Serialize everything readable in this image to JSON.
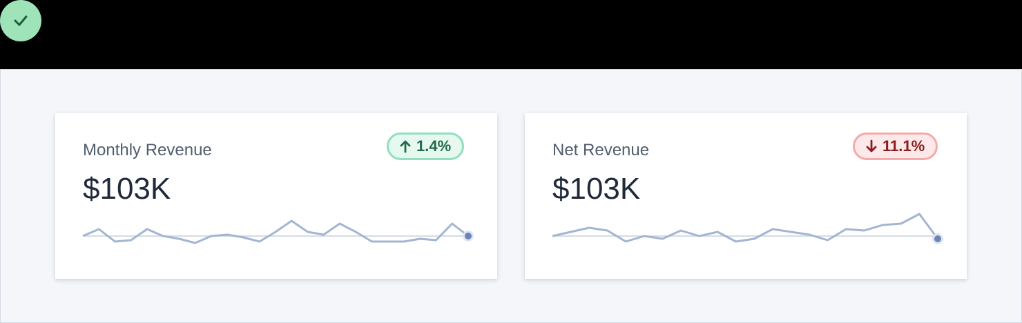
{
  "status": {
    "icon": "check-icon",
    "color": "#9fe3b8"
  },
  "colors": {
    "accent": "#a3b5d1",
    "dot": "#6b85b8",
    "baseline": "#c8d0dc",
    "up": "#1f6b47",
    "down": "#8a1c1c"
  },
  "cards": [
    {
      "title": "Monthly Revenue",
      "value": "$103K",
      "change": "1.4%",
      "direction": "up",
      "series": [
        0,
        5,
        -4,
        -3,
        5,
        0,
        -2,
        -5,
        0,
        1,
        -1,
        -4,
        3,
        11,
        3,
        1,
        9,
        3,
        -4,
        -4,
        -4,
        -2,
        -3,
        9,
        0
      ]
    },
    {
      "title": "Net Revenue",
      "value": "$103K",
      "change": "11.1%",
      "direction": "down",
      "series": [
        0,
        3,
        6,
        4,
        -4,
        0,
        -2,
        4,
        0,
        3,
        -4,
        -2,
        5,
        3,
        1,
        -3,
        5,
        4,
        8,
        9,
        16,
        -2
      ]
    }
  ]
}
